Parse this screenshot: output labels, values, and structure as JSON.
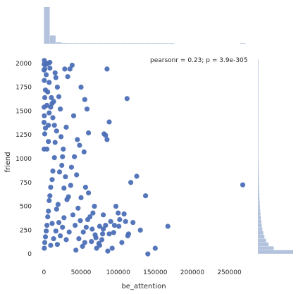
{
  "chart_data": {
    "type": "scatter",
    "kind": "jointplot with marginal histograms",
    "xlabel": "be_attention",
    "ylabel": "friend",
    "annotation": "pearsonr = 0.23; p = 3.9e-305",
    "xlim": [
      -8000,
      278000
    ],
    "ylim": [
      -80,
      2080
    ],
    "x_ticks": [
      0,
      50000,
      100000,
      150000,
      200000,
      250000
    ],
    "x_tick_labels": [
      "0",
      "50000",
      "100000",
      "150000",
      "200000",
      "250000"
    ],
    "y_ticks": [
      0,
      250,
      500,
      750,
      1000,
      1250,
      1500,
      1750,
      2000
    ],
    "y_tick_labels": [
      "0",
      "250",
      "500",
      "750",
      "1000",
      "1250",
      "1500",
      "1750",
      "2000"
    ],
    "grid": false,
    "color": "#4c6fb6",
    "hist_color": "#b3c2dd",
    "points": [
      [
        268000,
        725
      ],
      [
        167000,
        290
      ],
      [
        130000,
        250
      ],
      [
        125000,
        815
      ],
      [
        137000,
        610
      ],
      [
        117000,
        750
      ],
      [
        112000,
        1630
      ],
      [
        113000,
        190
      ],
      [
        114000,
        210
      ],
      [
        110000,
        340
      ],
      [
        108000,
        420
      ],
      [
        102000,
        360
      ],
      [
        101000,
        290
      ],
      [
        95000,
        300
      ],
      [
        94000,
        225
      ],
      [
        88000,
        210
      ],
      [
        88000,
        1385
      ],
      [
        85000,
        1940
      ],
      [
        85000,
        1200
      ],
      [
        81000,
        1260
      ],
      [
        83000,
        1245
      ],
      [
        80000,
        410
      ],
      [
        79000,
        210
      ],
      [
        75000,
        290
      ],
      [
        74000,
        110
      ],
      [
        70000,
        170
      ],
      [
        65000,
        260
      ],
      [
        60000,
        1270
      ],
      [
        58000,
        1520
      ],
      [
        55000,
        1620
      ],
      [
        50000,
        1750
      ],
      [
        54000,
        1070
      ],
      [
        48000,
        1140
      ],
      [
        45000,
        1200
      ],
      [
        40000,
        1450
      ],
      [
        35000,
        1940
      ],
      [
        32000,
        1860
      ],
      [
        38000,
        1980
      ],
      [
        28000,
        1940
      ],
      [
        30000,
        1330
      ],
      [
        25000,
        1020
      ],
      [
        22000,
        1520
      ],
      [
        20000,
        1650
      ],
      [
        18000,
        1750
      ],
      [
        16000,
        1850
      ],
      [
        15000,
        1900
      ],
      [
        14000,
        1350
      ],
      [
        12000,
        1430
      ],
      [
        11000,
        1580
      ],
      [
        13000,
        1600
      ],
      [
        62000,
        390
      ],
      [
        66000,
        430
      ],
      [
        55000,
        120
      ],
      [
        52000,
        80
      ],
      [
        43000,
        40
      ],
      [
        140000,
        0
      ],
      [
        150000,
        60
      ],
      [
        120000,
        330
      ],
      [
        100000,
        430
      ],
      [
        97000,
        500
      ],
      [
        90000,
        340
      ],
      [
        83000,
        300
      ],
      [
        78000,
        150
      ],
      [
        71000,
        60
      ],
      [
        68000,
        500
      ],
      [
        60000,
        640
      ],
      [
        56000,
        700
      ],
      [
        50000,
        590
      ],
      [
        46000,
        480
      ],
      [
        44000,
        830
      ],
      [
        41000,
        1020
      ],
      [
        37000,
        910
      ],
      [
        36000,
        720
      ],
      [
        33000,
        600
      ],
      [
        31000,
        570
      ],
      [
        29000,
        810
      ],
      [
        27000,
        690
      ],
      [
        26000,
        1100
      ],
      [
        24000,
        930
      ],
      [
        23000,
        1230
      ],
      [
        21000,
        860
      ],
      [
        19000,
        520
      ],
      [
        17000,
        470
      ],
      [
        17000,
        1290
      ],
      [
        15000,
        1170
      ],
      [
        14000,
        1010
      ],
      [
        12000,
        870
      ],
      [
        11000,
        780
      ],
      [
        10000,
        1640
      ],
      [
        9000,
        1540
      ],
      [
        8000,
        1950
      ],
      [
        8000,
        2010
      ],
      [
        7000,
        1800
      ],
      [
        7000,
        1480
      ],
      [
        6000,
        1350
      ],
      [
        6000,
        1180
      ],
      [
        5000,
        2000
      ],
      [
        5000,
        1700
      ],
      [
        4000,
        1560
      ],
      [
        4000,
        1100
      ],
      [
        3000,
        1990
      ],
      [
        3000,
        1880
      ],
      [
        2000,
        1720
      ],
      [
        2000,
        1320
      ],
      [
        1000,
        1940
      ],
      [
        1000,
        1640
      ],
      [
        1000,
        1260
      ],
      [
        500,
        2030
      ],
      [
        500,
        1820
      ],
      [
        500,
        1450
      ],
      [
        200,
        1990
      ],
      [
        200,
        1540
      ],
      [
        200,
        1100
      ],
      [
        100,
        1930
      ],
      [
        100,
        1380
      ],
      [
        105000,
        120
      ],
      [
        92000,
        60
      ],
      [
        86000,
        30
      ],
      [
        80000,
        260
      ],
      [
        75000,
        90
      ],
      [
        69000,
        200
      ],
      [
        64000,
        130
      ],
      [
        59000,
        360
      ],
      [
        57000,
        280
      ],
      [
        53000,
        230
      ],
      [
        49000,
        350
      ],
      [
        47000,
        160
      ],
      [
        42000,
        300
      ],
      [
        39000,
        410
      ],
      [
        34000,
        230
      ],
      [
        30000,
        150
      ],
      [
        27000,
        380
      ],
      [
        25000,
        280
      ],
      [
        22000,
        190
      ],
      [
        20000,
        330
      ],
      [
        18000,
        100
      ],
      [
        16000,
        240
      ],
      [
        13000,
        160
      ],
      [
        11000,
        320
      ],
      [
        9000,
        90
      ],
      [
        9000,
        700
      ],
      [
        8000,
        610
      ],
      [
        7000,
        560
      ],
      [
        6000,
        450
      ],
      [
        5000,
        390
      ],
      [
        4000,
        300
      ],
      [
        3000,
        240
      ],
      [
        2000,
        180
      ],
      [
        1000,
        120
      ],
      [
        500,
        60
      ]
    ],
    "x_hist": {
      "bin_width": 8000,
      "bins_start": 0,
      "values": [
        9000,
        2000,
        350,
        180,
        90,
        60,
        35,
        25,
        18,
        12,
        10,
        8,
        6,
        5,
        4,
        3,
        2,
        2,
        1,
        1,
        1,
        1,
        0,
        0,
        0,
        0,
        0,
        0,
        0,
        0,
        0,
        0,
        0,
        1
      ]
    },
    "y_hist": {
      "bin_width": 40,
      "bins_start": 0,
      "values": [
        3800,
        1700,
        1150,
        880,
        700,
        580,
        480,
        410,
        360,
        310,
        270,
        240,
        215,
        190,
        170,
        155,
        140,
        128,
        116,
        106,
        97,
        90,
        82,
        76,
        70,
        64,
        59,
        54,
        50,
        46,
        42,
        39,
        36,
        33,
        31,
        29,
        27,
        25,
        23,
        21,
        19,
        18,
        17,
        16,
        15,
        14,
        13,
        12,
        11,
        10,
        9
      ]
    }
  }
}
